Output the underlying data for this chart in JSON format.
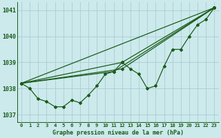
{
  "title": "Graphe pression niveau de la mer (hPa)",
  "bg_color": "#cce9ec",
  "grid_color": "#aacdd1",
  "line_color": "#1a5c1a",
  "tick_label_color": "#1a5c1a",
  "title_color": "#1a5c1a",
  "xlim": [
    -0.5,
    23.5
  ],
  "ylim": [
    1036.7,
    1041.3
  ],
  "yticks": [
    1037,
    1038,
    1039,
    1040,
    1041
  ],
  "xtick_labels": [
    "0",
    "1",
    "2",
    "3",
    "4",
    "5",
    "6",
    "7",
    "8",
    "9",
    "10",
    "11",
    "12",
    "13",
    "14",
    "15",
    "16",
    "17",
    "18",
    "19",
    "20",
    "21",
    "22",
    "23"
  ],
  "measured_series": [
    1038.2,
    1038.0,
    1037.6,
    1037.5,
    1037.3,
    1037.3,
    1037.55,
    1037.45,
    1037.75,
    1038.1,
    1038.55,
    1038.65,
    1039.0,
    1038.75,
    1038.55,
    1038.0,
    1038.1,
    1038.85,
    1039.5,
    1039.5,
    1040.0,
    1040.45,
    1040.65,
    1041.1
  ],
  "straight_lines": [
    [
      [
        0,
        1038.2
      ],
      [
        23,
        1041.1
      ]
    ],
    [
      [
        0,
        1038.2
      ],
      [
        11,
        1038.65
      ],
      [
        23,
        1041.1
      ]
    ],
    [
      [
        0,
        1038.2
      ],
      [
        12,
        1038.75
      ],
      [
        23,
        1041.1
      ]
    ],
    [
      [
        0,
        1038.2
      ],
      [
        12,
        1039.0
      ],
      [
        23,
        1041.1
      ]
    ]
  ]
}
